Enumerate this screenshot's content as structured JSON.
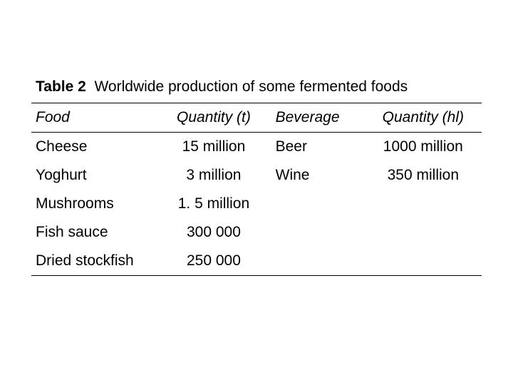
{
  "caption": {
    "label": "Table 2",
    "text": "Worldwide production of some fermented foods"
  },
  "headers": {
    "food": "Food",
    "qty_t": "Quantity (t)",
    "beverage": "Beverage",
    "qty_hl": "Quantity (hl)"
  },
  "rows": [
    {
      "food": "Cheese",
      "qty_t": "15 million",
      "beverage": "Beer",
      "qty_hl": "1000 million"
    },
    {
      "food": "Yoghurt",
      "qty_t": "3 million",
      "beverage": "Wine",
      "qty_hl": "350 million"
    },
    {
      "food": "Mushrooms",
      "qty_t": "1. 5 million",
      "beverage": "",
      "qty_hl": ""
    },
    {
      "food": "Fish sauce",
      "qty_t": "300 000",
      "beverage": "",
      "qty_hl": ""
    },
    {
      "food": "Dried stockfish",
      "qty_t": "250 000",
      "beverage": "",
      "qty_hl": ""
    }
  ]
}
